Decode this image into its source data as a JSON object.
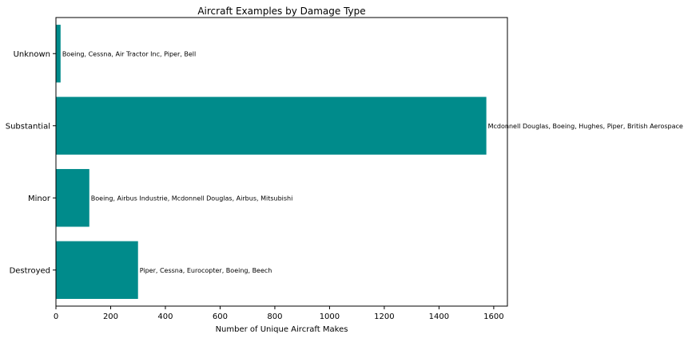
{
  "chart_data": {
    "type": "bar",
    "orientation": "horizontal",
    "title": "Aircraft Examples by Damage Type",
    "xlabel": "Number of Unique Aircraft Makes",
    "ylabel": "",
    "categories": [
      "Destroyed",
      "Minor",
      "Substantial",
      "Unknown"
    ],
    "values": [
      300,
      122,
      1573,
      17
    ],
    "annotations": [
      "Piper, Cessna, Eurocopter, Boeing, Beech",
      "Boeing, Airbus Industrie, Mcdonnell Douglas, Airbus, Mitsubishi",
      "Mcdonnell Douglas, Boeing, Hughes, Piper, British Aerospace",
      "Boeing, Cessna, Air Tractor Inc, Piper, Bell"
    ],
    "xlim": [
      0,
      1650
    ],
    "xticks": [
      0,
      200,
      400,
      600,
      800,
      1000,
      1200,
      1400,
      1600
    ],
    "grid": false,
    "bar_color": "#008b8b"
  }
}
